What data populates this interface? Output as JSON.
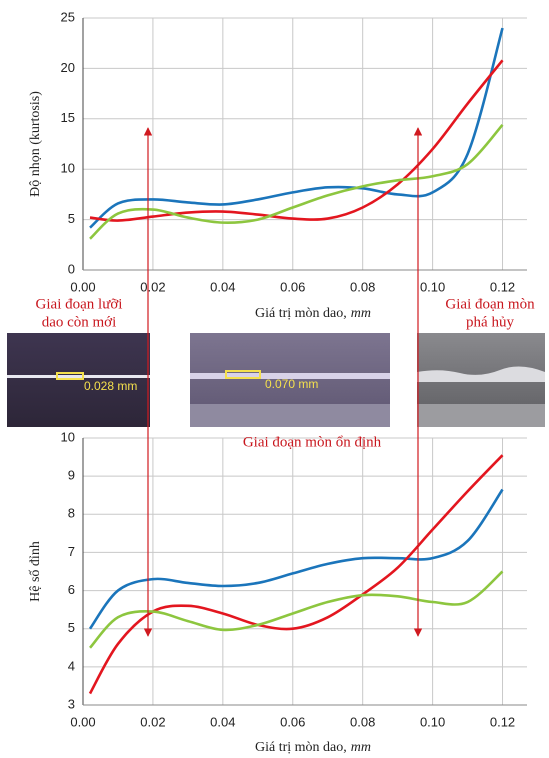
{
  "chart_data": [
    {
      "type": "line",
      "ylabel": "Độ nhọn (kurtosis)",
      "xlabel": "Giá trị mòn dao,",
      "xlabel_unit": "mm",
      "x": [
        0.002,
        0.01,
        0.02,
        0.03,
        0.04,
        0.05,
        0.06,
        0.07,
        0.08,
        0.09,
        0.1,
        0.11,
        0.12
      ],
      "xlim": [
        0,
        0.127
      ],
      "xticks": [
        {
          "value": 0,
          "label": "0.00"
        },
        0.02,
        0.04,
        0.06,
        0.08,
        {
          "value": 0.1,
          "label": "0.10"
        },
        0.12
      ],
      "ylim": [
        0,
        25
      ],
      "yticks": [
        0,
        5,
        10,
        15,
        20,
        25
      ],
      "grid": true,
      "series": [
        {
          "color": "#1b75bb",
          "values": [
            4.2,
            6.6,
            7.0,
            6.7,
            6.5,
            7.0,
            7.7,
            8.2,
            8.1,
            7.5,
            7.7,
            11.5,
            24.0
          ]
        },
        {
          "color": "#e3161f",
          "values": [
            5.2,
            4.9,
            5.3,
            5.7,
            5.8,
            5.5,
            5.1,
            5.1,
            6.2,
            8.5,
            12.0,
            16.5,
            20.8
          ]
        },
        {
          "color": "#8dc63f",
          "values": [
            3.1,
            5.6,
            6.0,
            5.2,
            4.7,
            5.0,
            6.2,
            7.4,
            8.3,
            8.9,
            9.3,
            10.5,
            14.4
          ]
        }
      ]
    },
    {
      "type": "line",
      "ylabel": "Hệ số đỉnh",
      "xlabel": "Giá trị mòn dao,",
      "xlabel_unit": "mm",
      "x": [
        0.002,
        0.01,
        0.02,
        0.03,
        0.04,
        0.05,
        0.06,
        0.07,
        0.08,
        0.09,
        0.1,
        0.11,
        0.12
      ],
      "xlim": [
        0,
        0.127
      ],
      "xticks": [
        {
          "value": 0,
          "label": "0.00"
        },
        0.02,
        0.04,
        0.06,
        0.08,
        {
          "value": 0.1,
          "label": "0.10"
        },
        0.12
      ],
      "ylim": [
        3,
        10
      ],
      "yticks": [
        3,
        4,
        5,
        6,
        7,
        8,
        9,
        10
      ],
      "grid": true,
      "series": [
        {
          "color": "#1b75bb",
          "values": [
            5.0,
            6.0,
            6.3,
            6.2,
            6.12,
            6.2,
            6.45,
            6.7,
            6.85,
            6.85,
            6.85,
            7.3,
            8.65
          ]
        },
        {
          "color": "#e3161f",
          "values": [
            3.3,
            4.6,
            5.45,
            5.6,
            5.4,
            5.1,
            5.0,
            5.3,
            5.9,
            6.6,
            7.6,
            8.6,
            9.55
          ]
        },
        {
          "color": "#8dc63f",
          "values": [
            4.5,
            5.3,
            5.45,
            5.2,
            4.97,
            5.1,
            5.4,
            5.7,
            5.88,
            5.85,
            5.7,
            5.7,
            6.5
          ]
        }
      ]
    }
  ],
  "annotations": {
    "stage_new": [
      "Giai đoạn lưỡi",
      "dao còn mới"
    ],
    "stage_stable": "Giai đoạn mòn ổn định",
    "stage_failure": [
      "Giai đoạn mòn",
      "phá hủy"
    ]
  },
  "images": {
    "left_label": "0.028 mm",
    "middle_label": "0.070 mm"
  }
}
